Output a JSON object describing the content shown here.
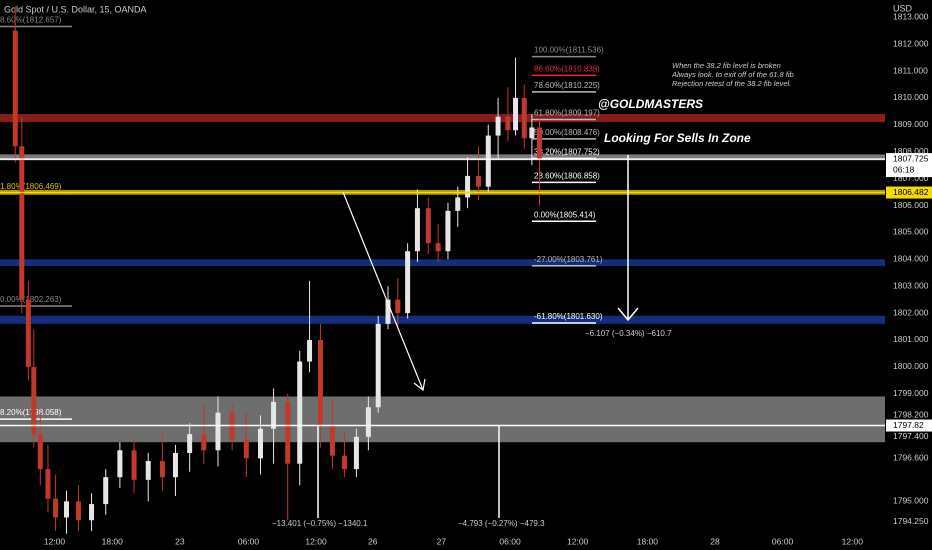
{
  "chart_data": {
    "type": "candlestick",
    "title": "Gold Spot / U.S. Dollar, 15, OANDA",
    "currency": "USD",
    "x": [
      1.4,
      2.0,
      2.6,
      3.1,
      3.7,
      4.4,
      5.1,
      6.1,
      7.2,
      8.4,
      9.7,
      11.0,
      12.3,
      13.6,
      14.9,
      16.1,
      17.4,
      18.7,
      20.0,
      21.3,
      22.6,
      23.9,
      25.1,
      26.4,
      27.5,
      28.4,
      29.4,
      30.5,
      31.6,
      32.7,
      33.8,
      34.7,
      35.6,
      36.5,
      37.4,
      38.3,
      39.3,
      40.2,
      41.1,
      42.0,
      42.9,
      43.9,
      44.8,
      45.7,
      46.6,
      47.3,
      48.1,
      48.8,
      49.5
    ],
    "open": [
      1812.5,
      1808.2,
      1802.5,
      1800,
      1797.5,
      1796.2,
      1795.1,
      1794.4,
      1795.0,
      1794.3,
      1794.9,
      1795.9,
      1796.9,
      1795.8,
      1796.5,
      1795.9,
      1796.8,
      1797.5,
      1796.9,
      1798.3,
      1797.3,
      1796.6,
      1797.7,
      1798.7,
      1796.4,
      1800.2,
      1801.0,
      1797.8,
      1796.7,
      1796.2,
      1797.4,
      1798.5,
      1801.6,
      1802.5,
      1802.0,
      1804.3,
      1805.9,
      1804.6,
      1804.3,
      1805.8,
      1806.3,
      1807.1,
      1806.7,
      1808.6,
      1809.3,
      1808.8,
      1810.0,
      1808.5,
      1808.9
    ],
    "high": [
      1813.4,
      1809.3,
      1803.2,
      1801.4,
      1798.3,
      1797.1,
      1796.0,
      1795.4,
      1795.6,
      1795.3,
      1796.2,
      1797.2,
      1797.3,
      1796.8,
      1797.5,
      1797.1,
      1797.9,
      1798.6,
      1798.9,
      1798.6,
      1798.3,
      1798.2,
      1799.2,
      1799.0,
      1800.6,
      1803.2,
      1801.6,
      1798.8,
      1797.6,
      1797.7,
      1798.9,
      1801.9,
      1803.0,
      1803.3,
      1804.6,
      1806.6,
      1806.3,
      1805.3,
      1806.1,
      1806.7,
      1807.8,
      1808.2,
      1809.0,
      1810.0,
      1810.4,
      1811.5,
      1810.5,
      1809.4,
      1809.2
    ],
    "low": [
      1807.6,
      1802.0,
      1799.5,
      1797.0,
      1795.6,
      1794.6,
      1793.9,
      1793.8,
      1793.9,
      1793.9,
      1794.5,
      1795.5,
      1795.3,
      1795.0,
      1795.4,
      1795.2,
      1796.1,
      1796.4,
      1796.3,
      1796.9,
      1795.9,
      1796.0,
      1796.4,
      1794.3,
      1795.6,
      1799.8,
      1797.0,
      1796.2,
      1795.9,
      1795.9,
      1796.9,
      1798.3,
      1801.4,
      1801.5,
      1801.8,
      1803.9,
      1804.2,
      1803.9,
      1804.0,
      1805.2,
      1805.9,
      1806.2,
      1806.5,
      1807.7,
      1808.4,
      1808.6,
      1808.1,
      1807.5,
      1806.0
    ],
    "close": [
      1808.2,
      1802.5,
      1800.0,
      1797.5,
      1796.2,
      1795.1,
      1794.4,
      1795.0,
      1794.3,
      1794.9,
      1795.9,
      1796.9,
      1795.8,
      1796.5,
      1795.9,
      1796.8,
      1797.5,
      1796.9,
      1798.3,
      1797.3,
      1796.6,
      1797.7,
      1798.7,
      1796.4,
      1800.2,
      1801.0,
      1797.8,
      1796.7,
      1796.2,
      1797.4,
      1798.5,
      1801.6,
      1802.5,
      1802.0,
      1804.3,
      1805.9,
      1804.6,
      1804.3,
      1805.8,
      1806.3,
      1807.1,
      1806.7,
      1808.6,
      1809.3,
      1808.8,
      1810.0,
      1808.5,
      1808.9,
      1807.7
    ],
    "up_color": "#e6e6e6",
    "down_color": "#c0392b",
    "xlim": [
      0,
      81.2
    ],
    "ylim": [
      1793.75,
      1813.64
    ],
    "xticks": [
      {
        "value": 5,
        "label": "12:00"
      },
      {
        "value": 10.3,
        "label": "18:00"
      },
      {
        "value": 16.5,
        "label": "23"
      },
      {
        "value": 22.8,
        "label": "06:00"
      },
      {
        "value": 29,
        "label": "12:00"
      },
      {
        "value": 34.2,
        "label": "26"
      },
      {
        "value": 40.5,
        "label": "27"
      },
      {
        "value": 46.8,
        "label": "06:00"
      },
      {
        "value": 53,
        "label": "12:00"
      },
      {
        "value": 59.4,
        "label": "18:00"
      },
      {
        "value": 65.6,
        "label": "28"
      },
      {
        "value": 71.8,
        "label": "06:00"
      },
      {
        "value": 78.2,
        "label": "12:00"
      }
    ],
    "yticks": [
      {
        "value": 1813,
        "label": "1813.000"
      },
      {
        "value": 1812,
        "label": "1812.000"
      },
      {
        "value": 1811,
        "label": "1811.000"
      },
      {
        "value": 1810,
        "label": "1810.000"
      },
      {
        "value": 1809,
        "label": "1809.000"
      },
      {
        "value": 1808,
        "label": "1808.000"
      },
      {
        "value": 1807,
        "label": "1807.000"
      },
      {
        "value": 1806,
        "label": "1806.000"
      },
      {
        "value": 1805,
        "label": "1805.000"
      },
      {
        "value": 1804,
        "label": "1804.000"
      },
      {
        "value": 1803,
        "label": "1803.000"
      },
      {
        "value": 1802,
        "label": "1802.000"
      },
      {
        "value": 1801,
        "label": "1801.000"
      },
      {
        "value": 1800,
        "label": "1800.000"
      },
      {
        "value": 1799,
        "label": "1799.000"
      },
      {
        "value": 1798.2,
        "label": "1798.200"
      },
      {
        "value": 1797.4,
        "label": "1797.400"
      },
      {
        "value": 1796.6,
        "label": "1796.600"
      },
      {
        "value": 1795,
        "label": "1795.000"
      },
      {
        "value": 1794.25,
        "label": "1794.250"
      }
    ],
    "grid": false,
    "zones": [
      {
        "from": 1809.1,
        "to": 1809.4,
        "color": "#a82424"
      },
      {
        "from": 1807.68,
        "to": 1807.9,
        "color": "#9a9a9a"
      },
      {
        "from": 1806.4,
        "to": 1806.58,
        "color": "#d4c000"
      },
      {
        "from": 1803.75,
        "to": 1804.0,
        "color": "#1a3a9a"
      },
      {
        "from": 1801.6,
        "to": 1801.9,
        "color": "#1a3a9a"
      },
      {
        "from": 1797.2,
        "to": 1798.9,
        "color": "#8a8a8a"
      }
    ],
    "fib_levels": [
      {
        "label": "100.00%(1811.536)",
        "value": 1811.536,
        "side": "right",
        "color": "#888888"
      },
      {
        "label": "86.60%(1810.838)",
        "value": 1810.838,
        "side": "right",
        "color": "#e03030"
      },
      {
        "label": "78.60%(1810.225)",
        "value": 1810.225,
        "side": "right",
        "color": "#bbbbbb"
      },
      {
        "label": "61.80%(1809.197)",
        "value": 1809.197,
        "side": "right",
        "color": "#bbbbbb"
      },
      {
        "label": "50.00%(1808.476)",
        "value": 1808.476,
        "side": "right",
        "color": "#bbbbbb"
      },
      {
        "label": "38.20%(1807.752)",
        "value": 1807.752,
        "side": "right",
        "color": "#ffffff"
      },
      {
        "label": "23.60%(1806.858)",
        "value": 1806.858,
        "side": "right",
        "color": "#ffffff"
      },
      {
        "label": "0.00%(1805.414)",
        "value": 1805.414,
        "side": "right",
        "color": "#ffffff"
      },
      {
        "label": "-27.00%(1803.761)",
        "value": 1803.761,
        "side": "right",
        "color": "#bbbbbb"
      },
      {
        "label": "-61.80%(1801.630)",
        "value": 1801.63,
        "side": "right",
        "color": "#ffffff"
      },
      {
        "label": "8.60%(1812.657)",
        "value": 1812.657,
        "side": "left",
        "color": "#888888"
      },
      {
        "label": "1.80%(1806.469)",
        "value": 1806.469,
        "side": "left",
        "color": "#d4c000"
      },
      {
        "label": "0.00%(1802.263)",
        "value": 1802.263,
        "side": "left",
        "color": "#888888"
      },
      {
        "label": "8.20%(1798.058)",
        "value": 1798.058,
        "side": "left",
        "color": "#ffffff"
      }
    ],
    "price_labels": [
      {
        "value": 1807.725,
        "color": "#ffffff"
      },
      {
        "value": 1806.482,
        "color": "#f0dc00"
      },
      {
        "value": 1797.82,
        "color": "#ffffff"
      }
    ],
    "countdown": "06:18",
    "note": [
      "When the 38.2 fib level is broken",
      "Always look. to exit off of the 61.8 fib",
      "Rejection retest of the 38.2 fib level."
    ],
    "brand": "@GOLDMASTERS",
    "zone_text": "Looking For Sells In Zone",
    "measures": [
      "−6.107 (−0.34%) −610.7",
      "−13.401 (−0.75%) −1340.1",
      "−4.793 (−0.27%) −479.3"
    ]
  }
}
